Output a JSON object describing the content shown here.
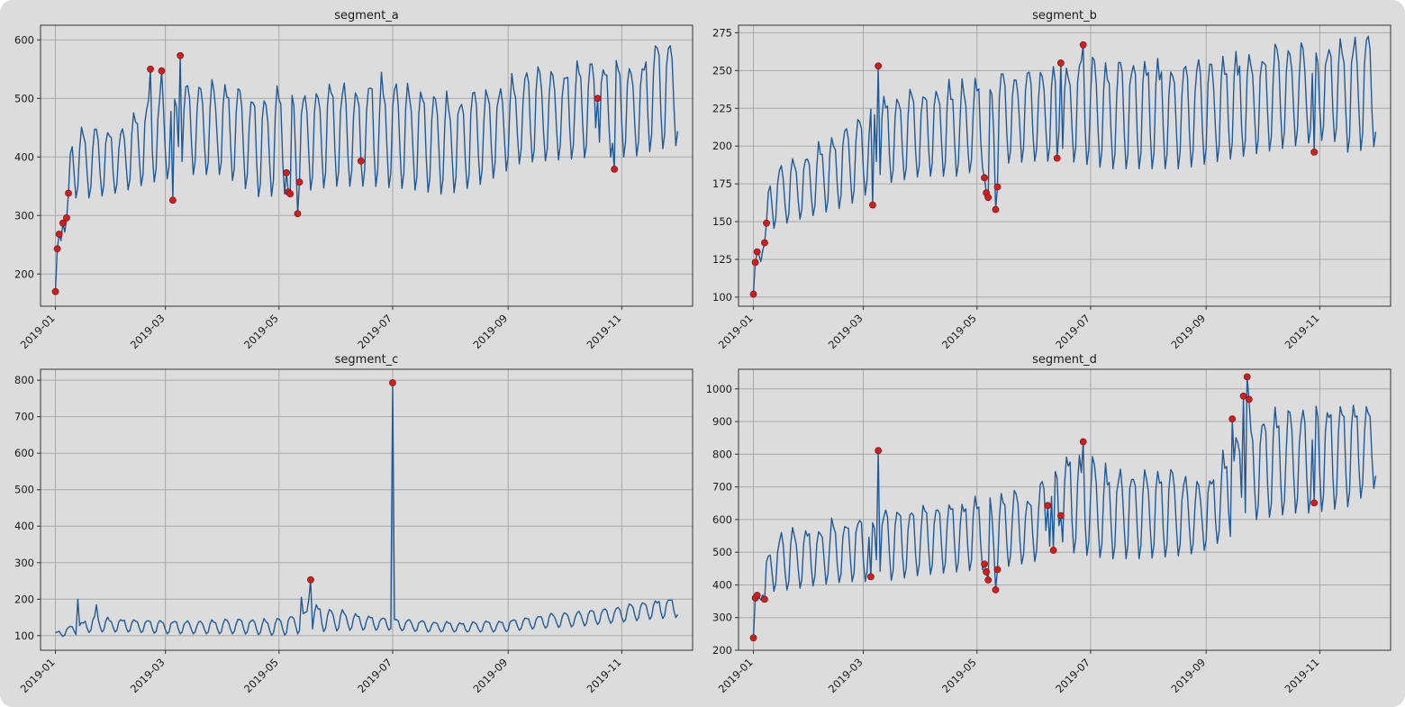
{
  "figure": {
    "background": "#dcdcdc",
    "line_color": "#1f5a99",
    "marker_color": "#cc1f1f"
  },
  "chart_data": [
    {
      "type": "line",
      "title": "segment_a",
      "x_tick_labels": [
        "2019-01",
        "2019-03",
        "2019-05",
        "2019-07",
        "2019-09",
        "2019-11"
      ],
      "y_ticks": [
        200,
        300,
        400,
        500,
        600
      ],
      "ylim": [
        145,
        625
      ],
      "xlim_days": [
        -8,
        342
      ],
      "envelope": {
        "days": [
          0,
          3,
          10,
          20,
          35,
          50,
          70,
          90,
          110,
          130,
          150,
          170,
          190,
          210,
          230,
          250,
          270,
          290,
          310,
          320,
          334
        ],
        "base": [
          165,
          230,
          330,
          330,
          340,
          355,
          370,
          370,
          330,
          340,
          350,
          350,
          345,
          335,
          355,
          390,
          395,
          400,
          400,
          410,
          420
        ],
        "peak": [
          175,
          300,
          450,
          450,
          440,
          500,
          520,
          520,
          500,
          510,
          520,
          530,
          520,
          500,
          505,
          540,
          550,
          560,
          560,
          580,
          600
        ]
      },
      "weekly_spread": 1,
      "anomalies": [
        [
          0,
          170
        ],
        [
          1,
          243
        ],
        [
          2,
          268
        ],
        [
          4,
          287
        ],
        [
          6,
          296
        ],
        [
          7,
          338
        ],
        [
          51,
          550
        ],
        [
          57,
          547
        ],
        [
          63,
          326
        ],
        [
          67,
          573
        ],
        [
          124,
          373
        ],
        [
          125,
          340
        ],
        [
          126,
          337
        ],
        [
          130,
          303
        ],
        [
          131,
          357
        ],
        [
          164,
          393
        ],
        [
          291,
          500
        ],
        [
          300,
          379
        ]
      ]
    },
    {
      "type": "line",
      "title": "segment_b",
      "x_tick_labels": [
        "2019-01",
        "2019-03",
        "2019-05",
        "2019-07",
        "2019-09",
        "2019-11"
      ],
      "y_ticks": [
        100,
        125,
        150,
        175,
        200,
        225,
        250,
        275
      ],
      "ylim": [
        94,
        280
      ],
      "xlim_days": [
        -8,
        342
      ],
      "envelope": {
        "days": [
          0,
          3,
          10,
          20,
          35,
          50,
          70,
          90,
          110,
          130,
          150,
          170,
          190,
          210,
          230,
          250,
          270,
          290,
          310,
          320,
          334
        ],
        "base": [
          102,
          120,
          145,
          150,
          155,
          160,
          175,
          180,
          180,
          188,
          190,
          190,
          185,
          185,
          185,
          190,
          195,
          200,
          205,
          195,
          200
        ],
        "peak": [
          108,
          140,
          185,
          190,
          200,
          215,
          230,
          235,
          240,
          245,
          250,
          255,
          255,
          255,
          255,
          255,
          260,
          265,
          265,
          270,
          270
        ]
      },
      "weekly_spread": 1,
      "anomalies": [
        [
          0,
          102
        ],
        [
          1,
          123
        ],
        [
          2,
          130
        ],
        [
          6,
          136
        ],
        [
          7,
          149
        ],
        [
          64,
          161
        ],
        [
          67,
          253
        ],
        [
          124,
          179
        ],
        [
          125,
          169
        ],
        [
          126,
          166
        ],
        [
          130,
          158
        ],
        [
          131,
          173
        ],
        [
          163,
          192
        ],
        [
          165,
          255
        ],
        [
          177,
          267
        ],
        [
          301,
          196
        ]
      ]
    },
    {
      "type": "line",
      "title": "segment_c",
      "x_tick_labels": [
        "2019-01",
        "2019-03",
        "2019-05",
        "2019-07",
        "2019-09",
        "2019-11"
      ],
      "y_ticks": [
        100,
        200,
        300,
        400,
        500,
        600,
        700,
        800
      ],
      "ylim": [
        60,
        830
      ],
      "xlim_days": [
        -8,
        342
      ],
      "envelope": {
        "days": [
          0,
          20,
          40,
          60,
          80,
          100,
          120,
          140,
          160,
          180,
          200,
          220,
          240,
          260,
          280,
          300,
          320,
          334
        ],
        "base": [
          95,
          110,
          110,
          105,
          105,
          105,
          100,
          110,
          115,
          115,
          110,
          110,
          110,
          120,
          125,
          135,
          145,
          150
        ],
        "peak": [
          110,
          150,
          145,
          140,
          140,
          145,
          145,
          180,
          160,
          145,
          140,
          135,
          140,
          155,
          165,
          175,
          195,
          205
        ]
      },
      "weekly_spread": 1,
      "spikes": [
        [
          12,
          200
        ],
        [
          22,
          185
        ],
        [
          132,
          205
        ],
        [
          136,
          200
        ],
        [
          181,
          793
        ]
      ],
      "anomalies": [
        [
          137,
          253
        ],
        [
          181,
          793
        ]
      ]
    },
    {
      "type": "line",
      "title": "segment_d",
      "x_tick_labels": [
        "2019-01",
        "2019-03",
        "2019-05",
        "2019-07",
        "2019-09",
        "2019-11"
      ],
      "y_ticks": [
        200,
        300,
        400,
        500,
        600,
        700,
        800,
        900,
        1000
      ],
      "ylim": [
        200,
        1060
      ],
      "xlim_days": [
        -8,
        342
      ],
      "envelope": {
        "days": [
          0,
          3,
          10,
          20,
          35,
          50,
          70,
          90,
          110,
          130,
          150,
          170,
          190,
          210,
          230,
          240,
          260,
          270,
          290,
          300,
          320,
          334
        ],
        "base": [
          240,
          350,
          380,
          385,
          400,
          410,
          410,
          430,
          440,
          450,
          470,
          500,
          480,
          480,
          490,
          500,
          560,
          600,
          620,
          620,
          640,
          700
        ],
        "peak": [
          250,
          380,
          550,
          560,
          580,
          600,
          620,
          640,
          650,
          660,
          680,
          800,
          750,
          740,
          740,
          700,
          850,
          910,
          920,
          930,
          960,
          950
        ]
      },
      "weekly_spread": 1,
      "anomalies": [
        [
          0,
          238
        ],
        [
          1,
          360
        ],
        [
          2,
          368
        ],
        [
          6,
          356
        ],
        [
          63,
          425
        ],
        [
          67,
          811
        ],
        [
          124,
          464
        ],
        [
          125,
          440
        ],
        [
          126,
          415
        ],
        [
          130,
          385
        ],
        [
          131,
          447
        ],
        [
          158,
          643
        ],
        [
          161,
          506
        ],
        [
          165,
          612
        ],
        [
          177,
          838
        ],
        [
          257,
          908
        ],
        [
          263,
          978
        ],
        [
          265,
          1037
        ],
        [
          266,
          968
        ],
        [
          301,
          651
        ]
      ]
    }
  ]
}
